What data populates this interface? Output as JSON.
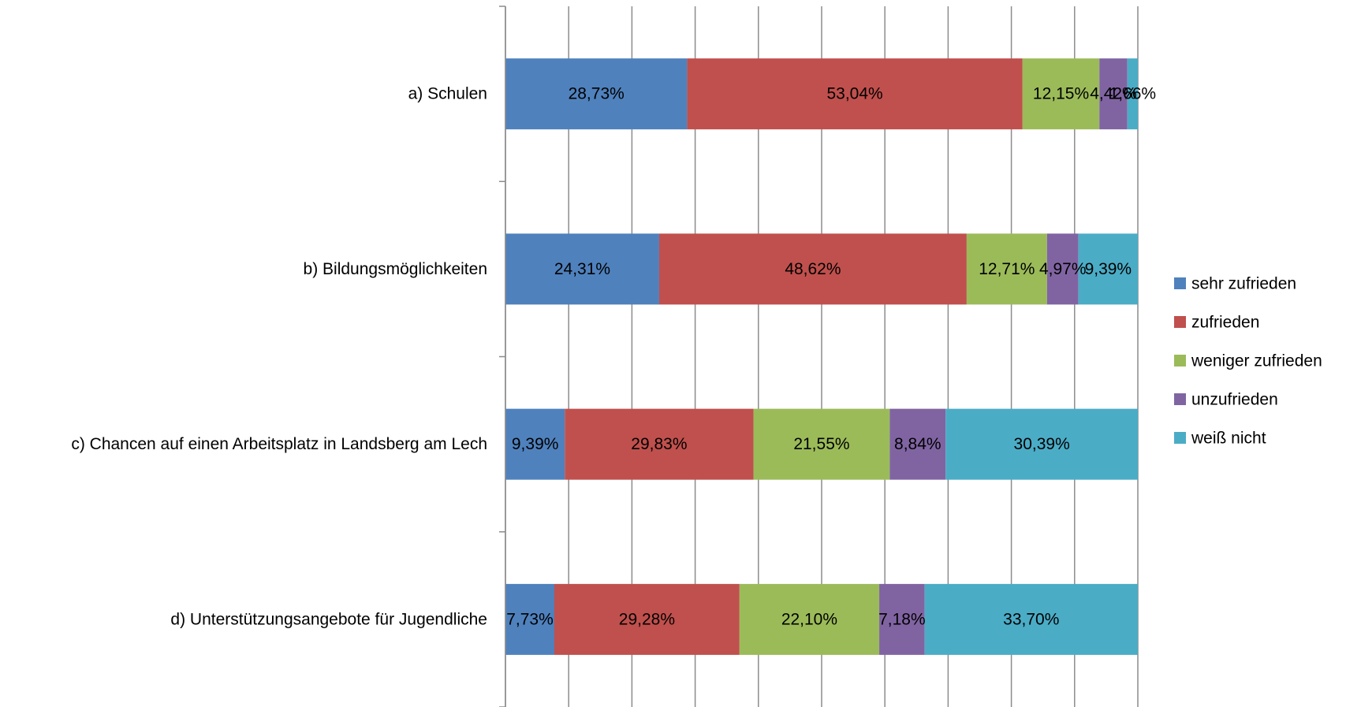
{
  "chart_data": {
    "type": "bar",
    "orientation": "horizontal",
    "stacked": "percent",
    "categories": [
      "a) Schulen",
      "b) Bildungsmöglichkeiten",
      "c) Chancen auf einen Arbeitsplatz in Landsberg am Lech",
      "d) Unterstützungsangebote für Jugendliche"
    ],
    "series": [
      {
        "name": "sehr zufrieden",
        "color": "#4F81BD",
        "values": [
          28.73,
          24.31,
          9.39,
          7.73
        ],
        "labels": [
          "28,73%",
          "24,31%",
          "9,39%",
          "7,73%"
        ]
      },
      {
        "name": "zufrieden",
        "color": "#C0504D",
        "values": [
          53.04,
          48.62,
          29.83,
          29.28
        ],
        "labels": [
          "53,04%",
          "48,62%",
          "29,83%",
          "29,28%"
        ]
      },
      {
        "name": "weniger zufrieden",
        "color": "#9BBB59",
        "values": [
          12.15,
          12.71,
          21.55,
          22.1
        ],
        "labels": [
          "12,15%",
          "12,71%",
          "21,55%",
          "22,10%"
        ]
      },
      {
        "name": "unzufrieden",
        "color": "#8064A2",
        "values": [
          4.42,
          4.97,
          8.84,
          7.18
        ],
        "labels": [
          "4,42%",
          "4,97%",
          "8,84%",
          "7,18%"
        ]
      },
      {
        "name": "weiß nicht",
        "color": "#4BACC6",
        "values": [
          1.66,
          9.39,
          30.39,
          33.7
        ],
        "labels": [
          "1,66%",
          "9,39%",
          "30,39%",
          "33,70%"
        ]
      }
    ],
    "xlim": [
      0,
      100
    ],
    "grid": true,
    "legend": "right"
  }
}
